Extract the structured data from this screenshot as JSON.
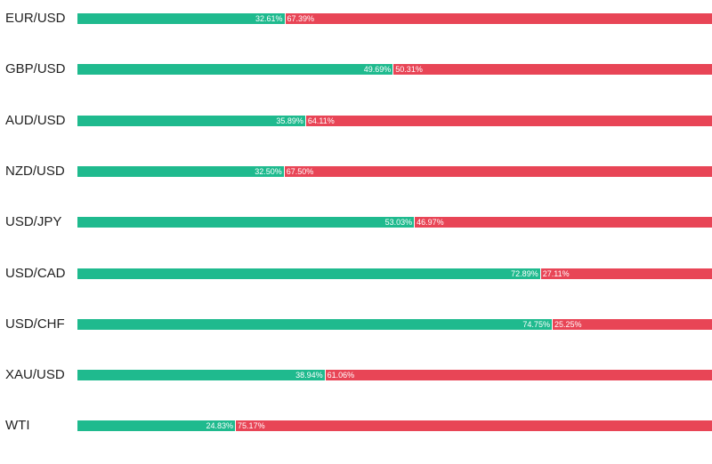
{
  "colors": {
    "buy": "#1fba8e",
    "sell": "#e84556"
  },
  "chart_data": {
    "type": "bar",
    "stacked": true,
    "orientation": "horizontal",
    "categories": [
      "EUR/USD",
      "GBP/USD",
      "AUD/USD",
      "NZD/USD",
      "USD/JPY",
      "USD/CAD",
      "USD/CHF",
      "XAU/USD",
      "WTI"
    ],
    "series": [
      {
        "values": [
          32.61,
          49.69,
          35.89,
          32.5,
          53.03,
          72.89,
          74.75,
          38.94,
          24.83
        ]
      },
      {
        "values": [
          67.39,
          50.31,
          64.11,
          67.5,
          46.97,
          27.11,
          25.25,
          61.06,
          75.17
        ]
      }
    ],
    "value_labels": [
      [
        "32.61%",
        "67.39%"
      ],
      [
        "49.69%",
        "50.31%"
      ],
      [
        "35.89%",
        "64.11%"
      ],
      [
        "32.50%",
        "67.50%"
      ],
      [
        "53.03%",
        "46.97%"
      ],
      [
        "72.89%",
        "27.11%"
      ],
      [
        "74.75%",
        "25.25%"
      ],
      [
        "38.94%",
        "61.06%"
      ],
      [
        "24.83%",
        "75.17%"
      ]
    ],
    "xlim": [
      0,
      100
    ]
  }
}
